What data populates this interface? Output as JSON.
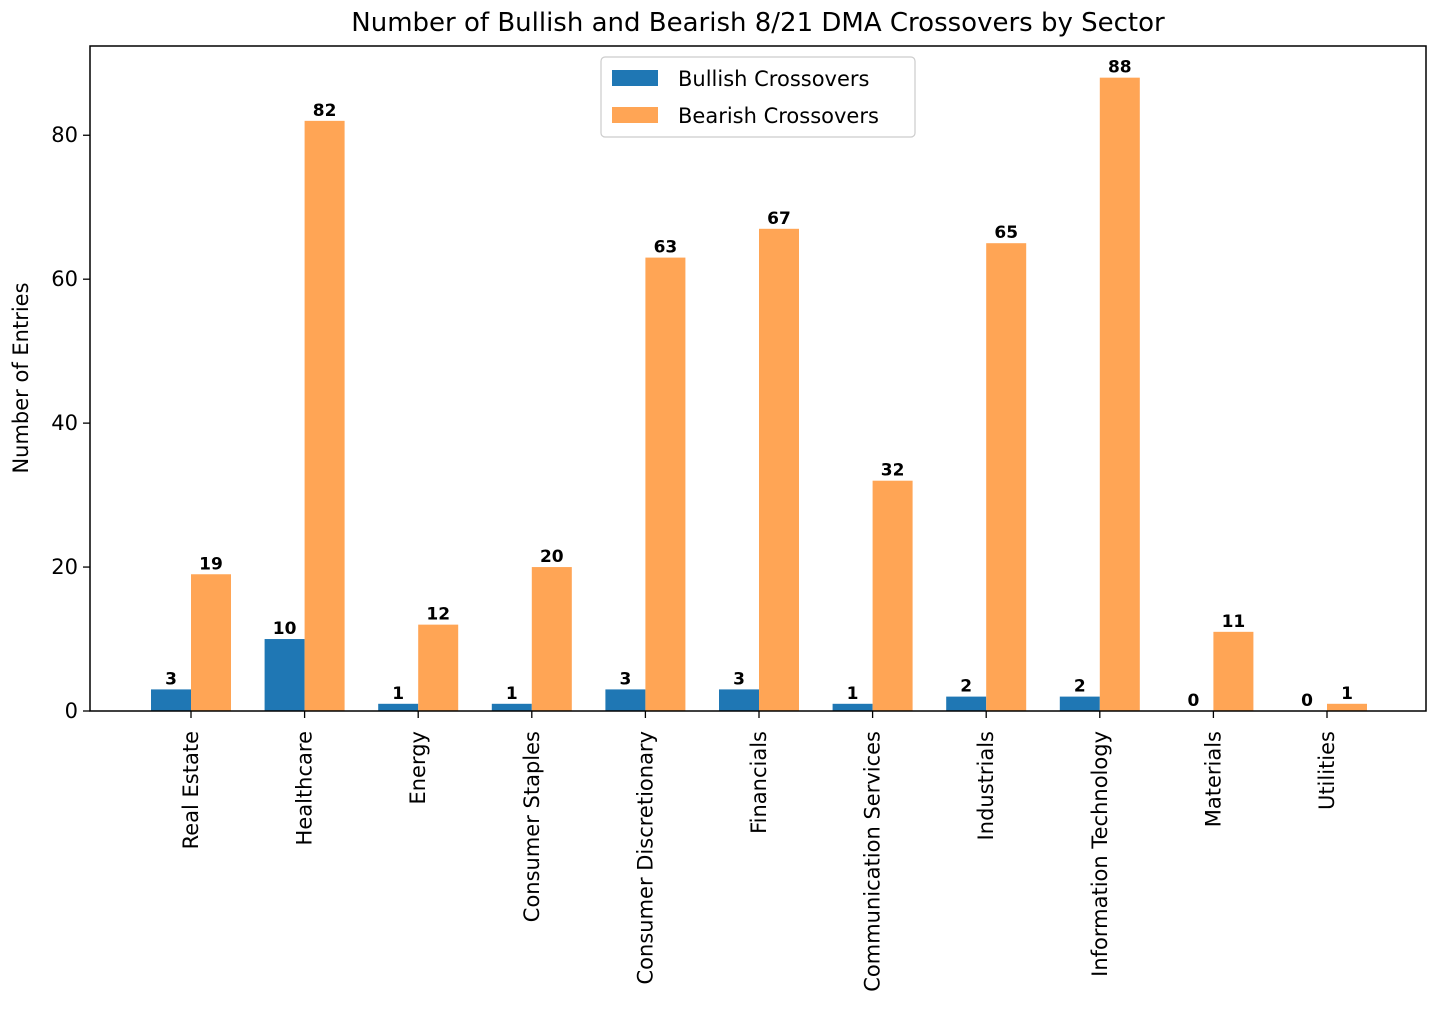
{
  "chart_data": {
    "type": "bar",
    "title": "Number of Bullish and Bearish 8/21 DMA Crossovers by Sector",
    "xlabel": "",
    "ylabel": "Number of Entries",
    "ylim": [
      0,
      92.4
    ],
    "yticks": [
      0,
      20,
      40,
      60,
      80
    ],
    "categories": [
      "Real Estate",
      "Healthcare",
      "Energy",
      "Consumer Staples",
      "Consumer Discretionary",
      "Financials",
      "Communication Services",
      "Industrials",
      "Information Technology",
      "Materials",
      "Utilities"
    ],
    "series": [
      {
        "name": "Bullish Crossovers",
        "color": "#1f77b4",
        "values": [
          3,
          10,
          1,
          1,
          3,
          3,
          1,
          2,
          2,
          0,
          0
        ]
      },
      {
        "name": "Bearish Crossovers",
        "color": "#ffa555",
        "values": [
          19,
          82,
          12,
          20,
          63,
          67,
          32,
          65,
          88,
          11,
          1
        ]
      }
    ],
    "legend_position": "upper-center",
    "grid": false
  }
}
